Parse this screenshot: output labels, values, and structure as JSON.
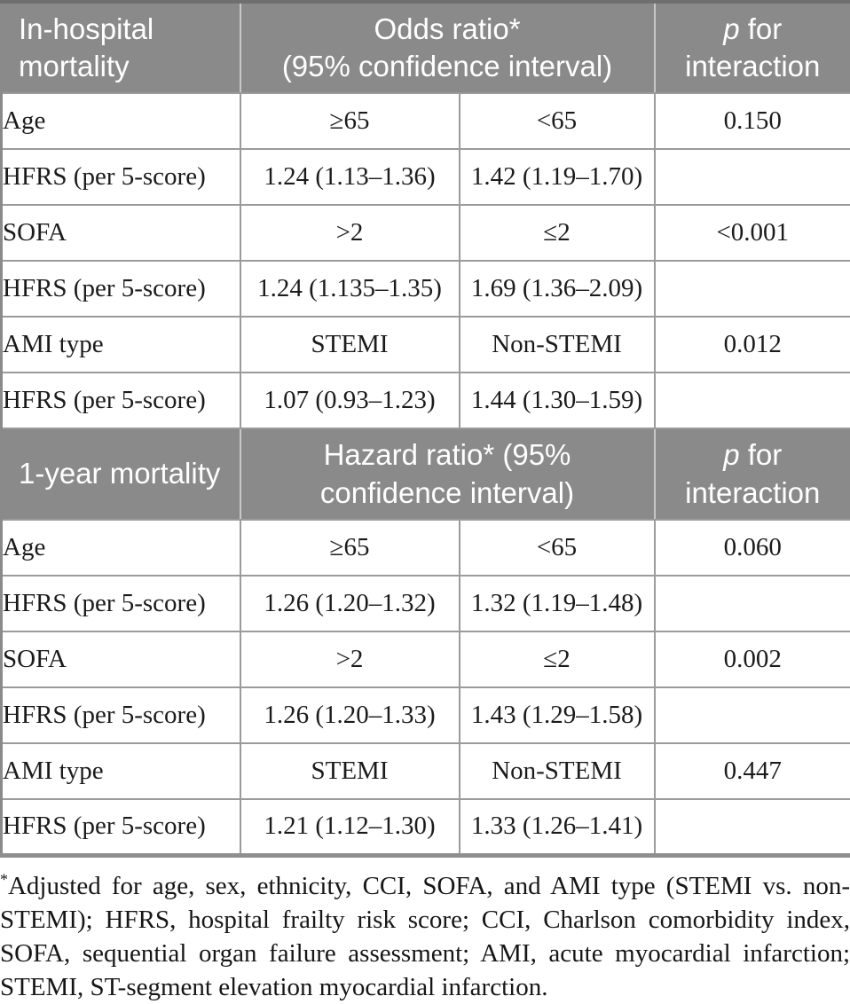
{
  "colors": {
    "header_bg": "#8a8a8a",
    "header_text": "#ffffff",
    "grid_line": "#9b9b9b"
  },
  "table": {
    "sections": [
      {
        "header": {
          "label": "In-hospital mortality",
          "ratio_full": "Odds ratio* (95% confidence interval)",
          "ratio_lines": [
            "Odds ratio*",
            "(95% confidence interval)"
          ],
          "p_italic": "p",
          "p_rest": " for interaction"
        },
        "rows": [
          {
            "cells": [
              "Age",
              "≥65",
              "<65",
              "0.150"
            ]
          },
          {
            "cells": [
              "HFRS (per 5-score)",
              "1.24 (1.13–1.36)",
              "1.42 (1.19–1.70)",
              ""
            ]
          },
          {
            "cells": [
              "SOFA",
              ">2",
              "≤2",
              "<0.001"
            ]
          },
          {
            "cells": [
              "HFRS (per 5-score)",
              "1.24 (1.135–1.35)",
              "1.69 (1.36–2.09)",
              ""
            ]
          },
          {
            "cells": [
              "AMI type",
              "STEMI",
              "Non-STEMI",
              "0.012"
            ]
          },
          {
            "cells": [
              "HFRS (per 5-score)",
              "1.07 (0.93–1.23)",
              "1.44 (1.30–1.59)",
              ""
            ]
          }
        ]
      },
      {
        "header": {
          "label": "1-year mortality",
          "ratio_full": "Hazard ratio* (95% confidence interval)",
          "ratio_lines": [
            "Hazard ratio* (95%",
            "confidence interval)"
          ],
          "p_italic": "p",
          "p_rest": " for interaction"
        },
        "rows": [
          {
            "cells": [
              "Age",
              "≥65",
              "<65",
              "0.060"
            ]
          },
          {
            "cells": [
              "HFRS (per 5-score)",
              "1.26 (1.20–1.32)",
              "1.32 (1.19–1.48)",
              ""
            ]
          },
          {
            "cells": [
              "SOFA",
              ">2",
              "≤2",
              "0.002"
            ]
          },
          {
            "cells": [
              "HFRS (per 5-score)",
              "1.26 (1.20–1.33)",
              "1.43 (1.29–1.58)",
              ""
            ]
          },
          {
            "cells": [
              "AMI type",
              "STEMI",
              "Non-STEMI",
              "0.447"
            ]
          },
          {
            "cells": [
              "HFRS (per 5-score)",
              "1.21 (1.12–1.30)",
              "1.33 (1.26–1.41)",
              ""
            ]
          }
        ]
      }
    ]
  },
  "footnote": {
    "marker": "*",
    "text": "Adjusted for age, sex, ethnicity, CCI, SOFA, and AMI type (STEMI vs. non-STEMI); HFRS, hospital frailty risk score; CCI, Charlson comorbidity index, SOFA, sequential organ failure assessment; AMI, acute myocardial infarction; STEMI, ST-segment elevation myocardial infarction."
  }
}
